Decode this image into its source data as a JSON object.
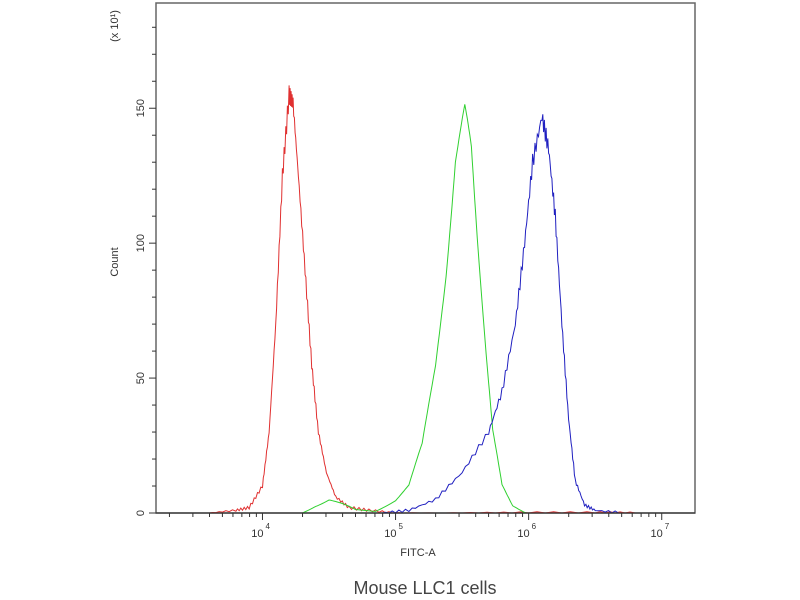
{
  "chart_data": {
    "type": "line",
    "title": "Mouse LLC1 cells",
    "xlabel": "FITC-A",
    "ylabel": "Count",
    "y_multiplier_label": "(x 10¹)",
    "x_scale": "log10",
    "xlim_log10": [
      3.2,
      7.25
    ],
    "ylim": [
      0,
      189
    ],
    "x_ticks": [
      {
        "exp": 4,
        "label": "10",
        "sup": "4"
      },
      {
        "exp": 5,
        "label": "10",
        "sup": "5"
      },
      {
        "exp": 6,
        "label": "10",
        "sup": "6"
      },
      {
        "exp": 7,
        "label": "10",
        "sup": "7"
      }
    ],
    "y_ticks": [
      0,
      50,
      100,
      150
    ],
    "grid": false,
    "series": [
      {
        "name": "red",
        "color": "#e03030",
        "x_log10": [
          3.6,
          3.8,
          3.9,
          4.0,
          4.05,
          4.1,
          4.15,
          4.2,
          4.23,
          4.27,
          4.32,
          4.37,
          4.42,
          4.48,
          4.55,
          4.65,
          4.8,
          5.0,
          5.5,
          6.0,
          6.5,
          6.8
        ],
        "y": [
          0,
          1,
          2,
          10,
          30,
          70,
          125,
          155,
          152,
          125,
          90,
          55,
          30,
          15,
          6,
          2,
          1,
          0,
          0,
          0,
          0,
          0
        ]
      },
      {
        "name": "green",
        "color": "#30d030",
        "x_log10": [
          4.3,
          4.4,
          4.5,
          4.6,
          4.7,
          4.85,
          5.0,
          5.1,
          5.2,
          5.3,
          5.38,
          5.45,
          5.52,
          5.57,
          5.62,
          5.68,
          5.73,
          5.8,
          5.88,
          6.0
        ],
        "y": [
          0,
          3,
          5,
          3,
          1,
          1,
          5,
          10,
          25,
          55,
          90,
          130,
          148,
          135,
          100,
          60,
          30,
          10,
          3,
          0
        ]
      },
      {
        "name": "blue",
        "color": "#2020c0",
        "x_log10": [
          4.9,
          5.1,
          5.3,
          5.5,
          5.7,
          5.8,
          5.9,
          5.97,
          6.03,
          6.1,
          6.15,
          6.2,
          6.25,
          6.3,
          6.35,
          6.42,
          6.5,
          6.7
        ],
        "y": [
          0,
          1,
          5,
          15,
          30,
          45,
          70,
          100,
          130,
          147,
          135,
          110,
          70,
          35,
          12,
          3,
          1,
          0
        ]
      }
    ]
  }
}
